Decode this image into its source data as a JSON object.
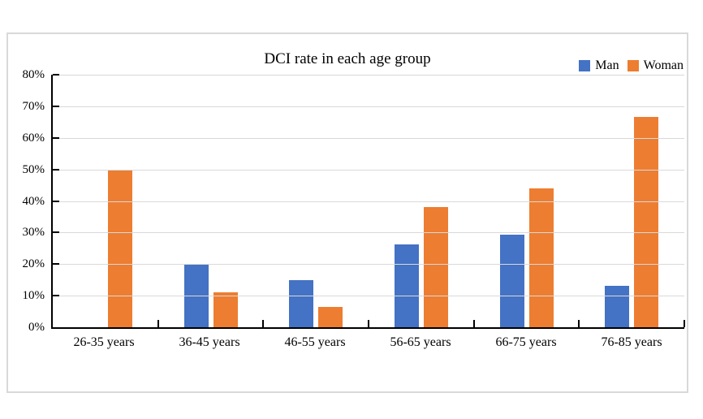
{
  "chart_data": {
    "type": "bar",
    "title": "DCI rate in each age group",
    "categories": [
      "26-35 years",
      "36-45 years",
      "46-55 years",
      "56-65 years",
      "66-75 years",
      "76-85 years"
    ],
    "series": [
      {
        "name": "Man",
        "color": "#4472C4",
        "values": [
          0,
          20,
          15,
          26.3,
          29.3,
          13.1
        ]
      },
      {
        "name": "Woman",
        "color": "#ED7D31",
        "values": [
          50,
          11.1,
          6.5,
          38.2,
          44.1,
          66.6
        ]
      }
    ],
    "ylim": [
      0,
      80
    ],
    "ytick_step": 10,
    "ytick_labels": [
      "0%",
      "10%",
      "20%",
      "30%",
      "40%",
      "50%",
      "60%",
      "70%",
      "80%"
    ],
    "grid": true,
    "legend_position": "top-right",
    "colors": {
      "gridline": "#d9d9d9",
      "axis": "#000000",
      "frame_border": "#d9d9d9",
      "text": "#000000"
    }
  }
}
